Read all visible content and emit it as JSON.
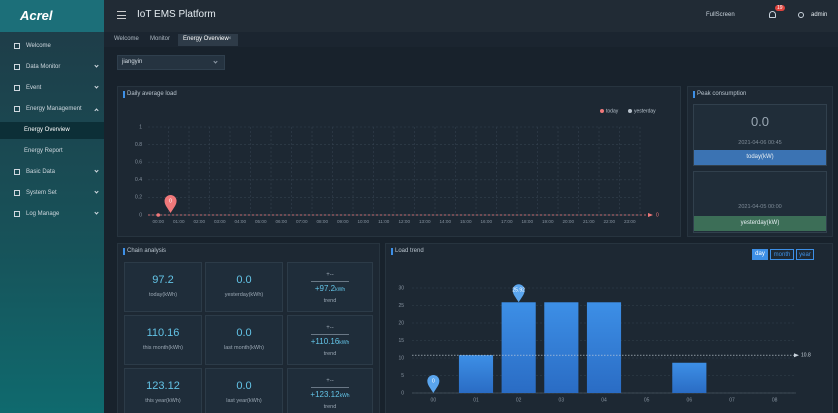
{
  "header": {
    "logo": "Acrel",
    "title": "IoT EMS Platform",
    "fullscreen": "FullScreen",
    "badge": "19",
    "user": "admin"
  },
  "sidebar": {
    "items": [
      "Welcome",
      "Data Monitor",
      "Event",
      "Energy Management",
      "Energy Overview",
      "Energy Report",
      "Basic Data",
      "System Set",
      "Log Manage"
    ]
  },
  "tabs": [
    "Welcome",
    "Monitor",
    "Energy Overview"
  ],
  "filter": "jiangyin",
  "peak": {
    "title": "Peak consumption",
    "today": {
      "value": "0.0",
      "time": "2021-04-06 00:45",
      "label": "today(kW)"
    },
    "yesterday": {
      "time": "2021-04-05 00:00",
      "label": "yesterday(kW)"
    }
  },
  "chain": {
    "title": "Chain analysis",
    "rows": [
      {
        "cells": [
          {
            "value": "97.2",
            "label": "today(kWh)"
          },
          {
            "value": "0.0",
            "label": "yesterday(kWh)"
          }
        ],
        "trend": {
          "sign": "+--",
          "value": "+97.2",
          "unit": "kWh",
          "label": "trend"
        }
      },
      {
        "cells": [
          {
            "value": "110.16",
            "label": "this month(kWh)"
          },
          {
            "value": "0.0",
            "label": "last month(kWh)"
          }
        ],
        "trend": {
          "sign": "+--",
          "value": "+110.16",
          "unit": "kWh",
          "label": "trend"
        }
      },
      {
        "cells": [
          {
            "value": "123.12",
            "label": "this year(kWh)"
          },
          {
            "value": "0.0",
            "label": "last year(kWh)"
          }
        ],
        "trend": {
          "sign": "+--",
          "value": "+123.12",
          "unit": "kWh",
          "label": "trend"
        }
      }
    ]
  },
  "chart_data": [
    {
      "type": "line",
      "title": "Daily average load",
      "categories": [
        "00:00",
        "01:00",
        "02:00",
        "03:00",
        "04:00",
        "05:00",
        "06:00",
        "07:00",
        "08:00",
        "09:00",
        "10:00",
        "11:00",
        "12:00",
        "13:00",
        "14:00",
        "15:00",
        "16:00",
        "17:00",
        "18:00",
        "19:00",
        "20:00",
        "21:00",
        "22:00",
        "23:00"
      ],
      "series": [
        {
          "name": "today",
          "color": "#f0787a",
          "values": [
            0,
            null,
            null,
            null,
            null,
            null,
            null,
            null,
            null,
            null,
            null,
            null,
            null,
            null,
            null,
            null,
            null,
            null,
            null,
            null,
            null,
            null,
            null,
            null
          ]
        },
        {
          "name": "yesterday",
          "color": "#b8c2cc",
          "values": [
            null,
            null,
            null,
            null,
            null,
            null,
            null,
            null,
            null,
            null,
            null,
            null,
            null,
            null,
            null,
            null,
            null,
            null,
            null,
            null,
            null,
            null,
            null,
            null
          ]
        }
      ],
      "ylim": [
        0,
        1
      ],
      "yticks": [
        0,
        0.2,
        0.4,
        0.6,
        0.8,
        1
      ],
      "markline": 0,
      "grid": true,
      "legend": "top-right"
    },
    {
      "type": "bar",
      "title": "Load trend",
      "buttons": [
        "day",
        "month",
        "year"
      ],
      "categories": [
        "00",
        "01",
        "02",
        "03",
        "04",
        "05",
        "06",
        "07",
        "08"
      ],
      "values": [
        0,
        10.8,
        25.92,
        25.92,
        25.92,
        0,
        8.64,
        0,
        0
      ],
      "color": "#3d8fe6",
      "ylim": [
        0,
        30
      ],
      "yticks": [
        0,
        5,
        10,
        15,
        20,
        25,
        30
      ],
      "average": 10.8,
      "grid": true
    }
  ]
}
